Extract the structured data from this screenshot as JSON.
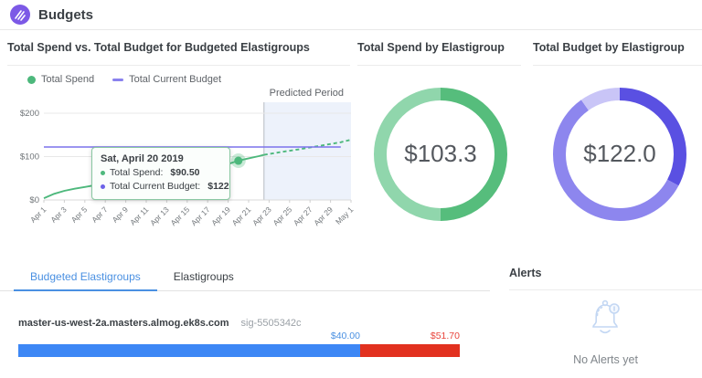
{
  "header": {
    "title": "Budgets"
  },
  "colors": {
    "spend_green": "#4db87c",
    "spend_green_light": "#90d6ac",
    "budget_purple": "#7b72eb",
    "tooltip_purple": "#6b62e8",
    "bar_blue": "#3d87f5",
    "bar_red": "#e2311f",
    "label_blue": "#4a90e2",
    "label_red": "#e8433a"
  },
  "panels": {
    "spend_vs_budget": {
      "title": "Total Spend vs. Total Budget for Budgeted Elastigroups",
      "legend": [
        {
          "label": "Total Spend",
          "color": "#4db87c",
          "marker": "dot"
        },
        {
          "label": "Total Current Budget",
          "color": "#8a82ee",
          "marker": "dash"
        }
      ],
      "tooltip": {
        "title": "Sat, April 20 2019",
        "rows": [
          {
            "label": "Total Spend:",
            "value": "$90.50",
            "color": "#4db87c"
          },
          {
            "label": "Total Current Budget:",
            "value": "$122",
            "color": "#6b62e8"
          }
        ]
      },
      "chart_data": {
        "type": "line",
        "title": "Total Spend vs. Total Budget for Budgeted Elastigroups",
        "x_axis": {
          "note": "day 0 = Apr 1 2019, day 30 = May 1 2019",
          "domain_days": [
            0,
            30
          ],
          "tick_labels": [
            "Apr 1",
            "Apr 3",
            "Apr 5",
            "Apr 7",
            "Apr 9",
            "Apr 11",
            "Apr 13",
            "Apr 15",
            "Apr 17",
            "Apr 19",
            "Apr 21",
            "Apr 23",
            "Apr 25",
            "Apr 27",
            "Apr 29",
            "May 1"
          ]
        },
        "y_axis": {
          "tick_labels": [
            "$0",
            "$100",
            "$200"
          ],
          "tick_values": [
            0,
            100,
            200
          ],
          "lim": [
            0,
            200
          ]
        },
        "series": [
          {
            "name": "Total Spend",
            "style": "solid",
            "color": "#4db87c",
            "points": [
              [
                0,
                4
              ],
              [
                1,
                14
              ],
              [
                2,
                21
              ],
              [
                3,
                26
              ],
              [
                4,
                30
              ],
              [
                5,
                34
              ],
              [
                6,
                37
              ],
              [
                7,
                41
              ],
              [
                8,
                44
              ],
              [
                9,
                48
              ],
              [
                10,
                51
              ],
              [
                11,
                55
              ],
              [
                12,
                59
              ],
              [
                13,
                63
              ],
              [
                14,
                67
              ],
              [
                15,
                70
              ],
              [
                16,
                74
              ],
              [
                17,
                78
              ],
              [
                18,
                83
              ],
              [
                19,
                90.5
              ],
              [
                20,
                96
              ],
              [
                21,
                101
              ],
              [
                21.5,
                104
              ]
            ]
          },
          {
            "name": "Total Spend (predicted)",
            "style": "dashed",
            "color": "#4db87c",
            "points": [
              [
                21.5,
                104
              ],
              [
                23,
                110
              ],
              [
                25,
                117
              ],
              [
                27,
                125
              ],
              [
                29,
                133
              ],
              [
                30,
                139
              ]
            ]
          },
          {
            "name": "Total Current Budget",
            "style": "solid",
            "color": "#7b72eb",
            "points": [
              [
                0,
                122
              ],
              [
                29,
                122
              ]
            ]
          }
        ],
        "predicted_period": {
          "label": "Predicted Period",
          "start_day": 21.5
        },
        "highlighted_point": {
          "series": "Total Spend",
          "x_label": "Sat, April 20 2019",
          "day": 19,
          "value": 90.5
        }
      }
    },
    "total_spend_donut": {
      "title": "Total Spend by Elastigroup",
      "center_label": "$103.3",
      "chart_data": {
        "type": "donut",
        "total": 103.3,
        "segments": [
          {
            "value": 51.7,
            "color": "#56bd7c"
          },
          {
            "value": 51.6,
            "color": "#90d6ac"
          }
        ]
      }
    },
    "total_budget_donut": {
      "title": "Total Budget by Elastigroup",
      "center_label": "$122.0",
      "chart_data": {
        "type": "donut",
        "total": 122.0,
        "segments": [
          {
            "value": 40.0,
            "color": "#5a50e2"
          },
          {
            "value": 70.0,
            "color": "#8d86ee"
          },
          {
            "value": 12.0,
            "color": "#c9c5f7"
          }
        ]
      }
    }
  },
  "bottom": {
    "tabs": [
      {
        "label": "Budgeted Elastigroups",
        "active": true
      },
      {
        "label": "Elastigroups",
        "active": false
      }
    ],
    "row": {
      "name": "master-us-west-2a.masters.almog.ek8s.com",
      "sig": "sig-5505342c"
    },
    "budget_bar": {
      "type": "stacked_bar",
      "budget": 40.0,
      "total_spend": 51.7,
      "budget_label": "$40.00",
      "spend_label": "$51.70",
      "budget_color": "#3d87f5",
      "overage_color": "#e2311f"
    }
  },
  "alerts": {
    "title": "Alerts",
    "empty_text": "No Alerts yet"
  }
}
